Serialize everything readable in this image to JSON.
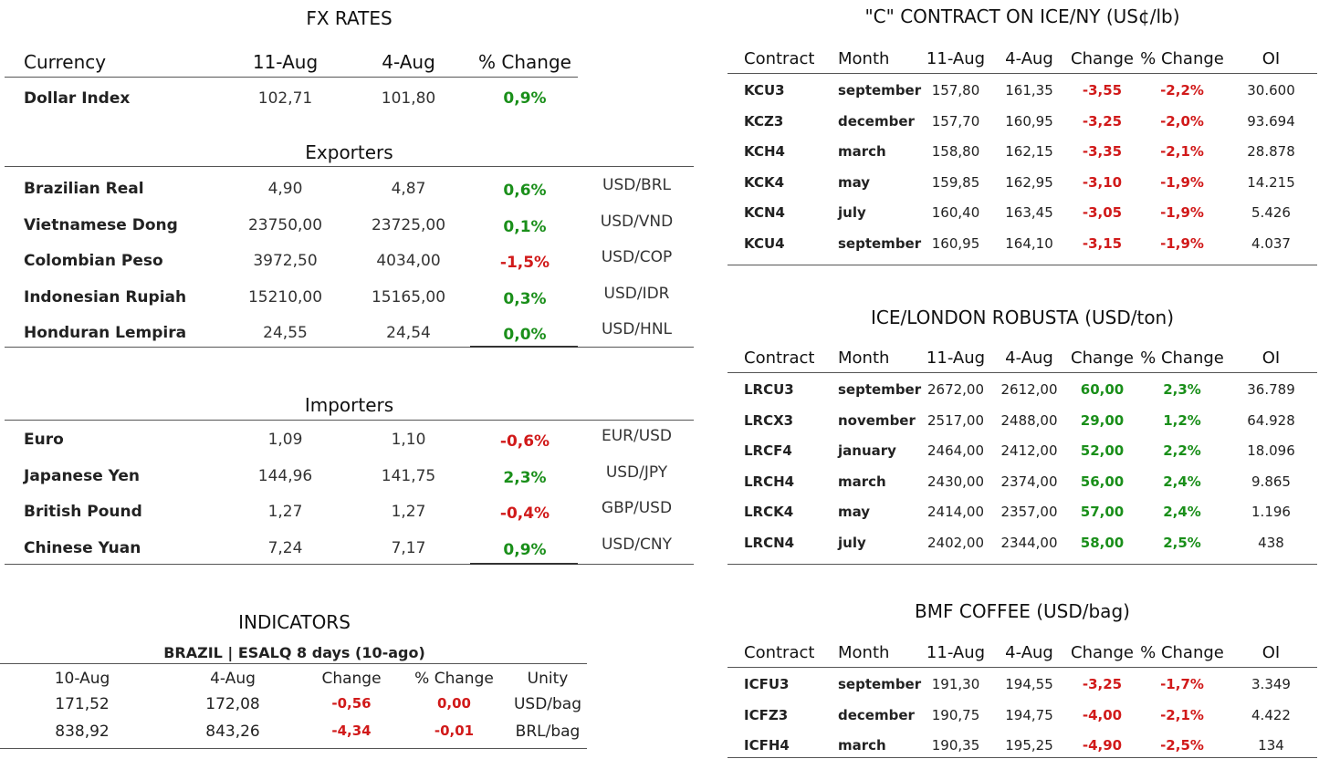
{
  "fx": {
    "title": "FX RATES",
    "headers": [
      "Currency",
      "11-Aug",
      "4-Aug",
      "% Change"
    ],
    "dollar_index": {
      "name": "Dollar Index",
      "v1": "102,71",
      "v2": "101,80",
      "chg": "0,9%",
      "dir": "up"
    },
    "exporters_title": "Exporters",
    "exporters": [
      {
        "name": "Brazilian Real",
        "v1": "4,90",
        "v2": "4,87",
        "chg": "0,6%",
        "dir": "up",
        "pair": "USD/BRL"
      },
      {
        "name": "Vietnamese Dong",
        "v1": "23750,00",
        "v2": "23725,00",
        "chg": "0,1%",
        "dir": "up",
        "pair": "USD/VND"
      },
      {
        "name": "Colombian Peso",
        "v1": "3972,50",
        "v2": "4034,00",
        "chg": "-1,5%",
        "dir": "down",
        "pair": "USD/COP"
      },
      {
        "name": "Indonesian Rupiah",
        "v1": "15210,00",
        "v2": "15165,00",
        "chg": "0,3%",
        "dir": "up",
        "pair": "USD/IDR"
      },
      {
        "name": "Honduran Lempira",
        "v1": "24,55",
        "v2": "24,54",
        "chg": "0,0%",
        "dir": "up",
        "pair": "USD/HNL"
      }
    ],
    "importers_title": "Importers",
    "importers": [
      {
        "name": "Euro",
        "v1": "1,09",
        "v2": "1,10",
        "chg": "-0,6%",
        "dir": "down",
        "pair": "EUR/USD"
      },
      {
        "name": "Japanese Yen",
        "v1": "144,96",
        "v2": "141,75",
        "chg": "2,3%",
        "dir": "up",
        "pair": "USD/JPY"
      },
      {
        "name": "British Pound",
        "v1": "1,27",
        "v2": "1,27",
        "chg": "-0,4%",
        "dir": "down",
        "pair": "GBP/USD"
      },
      {
        "name": "Chinese Yuan",
        "v1": "7,24",
        "v2": "7,17",
        "chg": "0,9%",
        "dir": "up",
        "pair": "USD/CNY"
      }
    ]
  },
  "indicators": {
    "title": "INDICATORS",
    "subtitle": "BRAZIL | ESALQ 8 days (10-ago)",
    "headers": [
      "10-Aug",
      "4-Aug",
      "Change",
      "% Change",
      "Unity"
    ],
    "rows": [
      {
        "v1": "171,52",
        "v2": "172,08",
        "chg": "-0,56",
        "pct": "0,00",
        "unit": "USD/bag"
      },
      {
        "v1": "838,92",
        "v2": "843,26",
        "chg": "-4,34",
        "pct": "-0,01",
        "unit": "BRL/bag"
      }
    ]
  },
  "ice_ny": {
    "title": "\"C\" CONTRACT ON ICE/NY (US¢/lb)",
    "headers": [
      "Contract",
      "Month",
      "11-Aug",
      "4-Aug",
      "Change",
      "% Change",
      "OI"
    ],
    "rows": [
      {
        "c": "KCU3",
        "m": "september",
        "v1": "157,80",
        "v2": "161,35",
        "chg": "-3,55",
        "pct": "-2,2%",
        "oi": "30.600",
        "dir": "down"
      },
      {
        "c": "KCZ3",
        "m": "december",
        "v1": "157,70",
        "v2": "160,95",
        "chg": "-3,25",
        "pct": "-2,0%",
        "oi": "93.694",
        "dir": "down"
      },
      {
        "c": "KCH4",
        "m": "march",
        "v1": "158,80",
        "v2": "162,15",
        "chg": "-3,35",
        "pct": "-2,1%",
        "oi": "28.878",
        "dir": "down"
      },
      {
        "c": "KCK4",
        "m": "may",
        "v1": "159,85",
        "v2": "162,95",
        "chg": "-3,10",
        "pct": "-1,9%",
        "oi": "14.215",
        "dir": "down"
      },
      {
        "c": "KCN4",
        "m": "july",
        "v1": "160,40",
        "v2": "163,45",
        "chg": "-3,05",
        "pct": "-1,9%",
        "oi": "5.426",
        "dir": "down"
      },
      {
        "c": "KCU4",
        "m": "september",
        "v1": "160,95",
        "v2": "164,10",
        "chg": "-3,15",
        "pct": "-1,9%",
        "oi": "4.037",
        "dir": "down"
      }
    ]
  },
  "robusta": {
    "title": "ICE/LONDON ROBUSTA (USD/ton)",
    "headers": [
      "Contract",
      "Month",
      "11-Aug",
      "4-Aug",
      "Change",
      "% Change",
      "OI"
    ],
    "rows": [
      {
        "c": "LRCU3",
        "m": "september",
        "v1": "2672,00",
        "v2": "2612,00",
        "chg": "60,00",
        "pct": "2,3%",
        "oi": "36.789",
        "dir": "up"
      },
      {
        "c": "LRCX3",
        "m": "november",
        "v1": "2517,00",
        "v2": "2488,00",
        "chg": "29,00",
        "pct": "1,2%",
        "oi": "64.928",
        "dir": "up"
      },
      {
        "c": "LRCF4",
        "m": "january",
        "v1": "2464,00",
        "v2": "2412,00",
        "chg": "52,00",
        "pct": "2,2%",
        "oi": "18.096",
        "dir": "up"
      },
      {
        "c": "LRCH4",
        "m": "march",
        "v1": "2430,00",
        "v2": "2374,00",
        "chg": "56,00",
        "pct": "2,4%",
        "oi": "9.865",
        "dir": "up"
      },
      {
        "c": "LRCK4",
        "m": "may",
        "v1": "2414,00",
        "v2": "2357,00",
        "chg": "57,00",
        "pct": "2,4%",
        "oi": "1.196",
        "dir": "up"
      },
      {
        "c": "LRCN4",
        "m": "july",
        "v1": "2402,00",
        "v2": "2344,00",
        "chg": "58,00",
        "pct": "2,5%",
        "oi": "438",
        "dir": "up"
      }
    ]
  },
  "bmf": {
    "title": "BMF COFFEE (USD/bag)",
    "headers": [
      "Contract",
      "Month",
      "11-Aug",
      "4-Aug",
      "Change",
      "% Change",
      "OI"
    ],
    "rows": [
      {
        "c": "ICFU3",
        "m": "september",
        "v1": "191,30",
        "v2": "194,55",
        "chg": "-3,25",
        "pct": "-1,7%",
        "oi": "3.349",
        "dir": "down"
      },
      {
        "c": "ICFZ3",
        "m": "december",
        "v1": "190,75",
        "v2": "194,75",
        "chg": "-4,00",
        "pct": "-2,1%",
        "oi": "4.422",
        "dir": "down"
      },
      {
        "c": "ICFH4",
        "m": "march",
        "v1": "190,35",
        "v2": "195,25",
        "chg": "-4,90",
        "pct": "-2,5%",
        "oi": "134",
        "dir": "down"
      }
    ]
  },
  "colors": {
    "up": "#1a8f1a",
    "down": "#d11a1a"
  }
}
